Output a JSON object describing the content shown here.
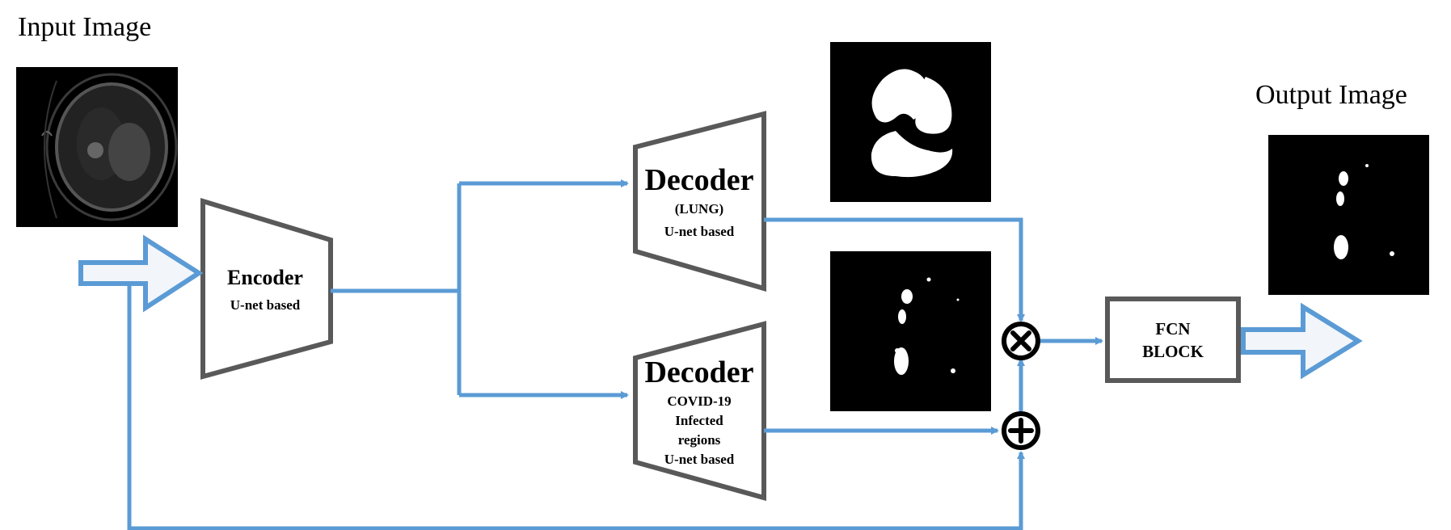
{
  "labels": {
    "input_title": "Input Image",
    "output_title": "Output Image"
  },
  "encoder": {
    "title": "Encoder",
    "subtitle": "U-net based"
  },
  "decoder_lung": {
    "title": "Decoder",
    "lines": [
      "(LUNG)",
      "U-net based"
    ]
  },
  "decoder_covid": {
    "title": "Decoder",
    "lines": [
      "COVID-19",
      "Infected",
      "regions",
      "U-net based"
    ]
  },
  "fcn": {
    "lines": [
      "FCN",
      "BLOCK"
    ]
  },
  "operators": {
    "multiply": "⊗",
    "add": "⊕"
  },
  "colors": {
    "connector": "#5b9bd5",
    "box_stroke": "#595959",
    "image_bg": "#000000",
    "mask": "#ffffff"
  }
}
